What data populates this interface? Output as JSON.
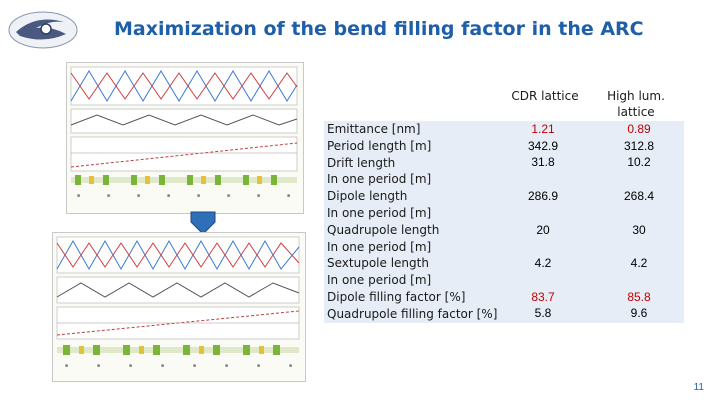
{
  "slide": {
    "title": "Maximization of the bend filling factor in the ARC",
    "page_number": "11"
  },
  "table": {
    "col1_header": "CDR lattice",
    "col2_header": "High lum. lattice",
    "rows": [
      {
        "label": "Emittance [nm]",
        "cdr": "1.21",
        "hl": "0.89",
        "highlight": true
      },
      {
        "label": "Period length [m]",
        "cdr": "342.9",
        "hl": "312.8",
        "highlight": false
      },
      {
        "label": "Drift length",
        "cdr": "31.8",
        "hl": "10.2",
        "highlight": false
      },
      {
        "label": "In one period [m]",
        "cdr": "",
        "hl": "",
        "highlight": false
      },
      {
        "label": "Dipole length",
        "cdr": "286.9",
        "hl": "268.4",
        "highlight": false
      },
      {
        "label": "In one period [m]",
        "cdr": "",
        "hl": "",
        "highlight": false
      },
      {
        "label": "Quadrupole length",
        "cdr": "20",
        "hl": "30",
        "highlight": false
      },
      {
        "label": "In one period [m]",
        "cdr": "",
        "hl": "",
        "highlight": false
      },
      {
        "label": "Sextupole length",
        "cdr": "4.2",
        "hl": "4.2",
        "highlight": false
      },
      {
        "label": "In one period [m]",
        "cdr": "",
        "hl": "",
        "highlight": false
      },
      {
        "label": "Dipole filling factor [%]",
        "cdr": "83.7",
        "hl": "85.8",
        "highlight": true
      },
      {
        "label": "Quadrupole filling factor [%]",
        "cdr": "5.8",
        "hl": "9.6",
        "highlight": false
      }
    ]
  },
  "colors": {
    "title": "#1f5fa8",
    "highlight": "#c00000",
    "band": "#e6edf6",
    "magnet_green": "#7bb33b",
    "magnet_yellow": "#e3c23a",
    "arrow": "#2f6fb7"
  }
}
